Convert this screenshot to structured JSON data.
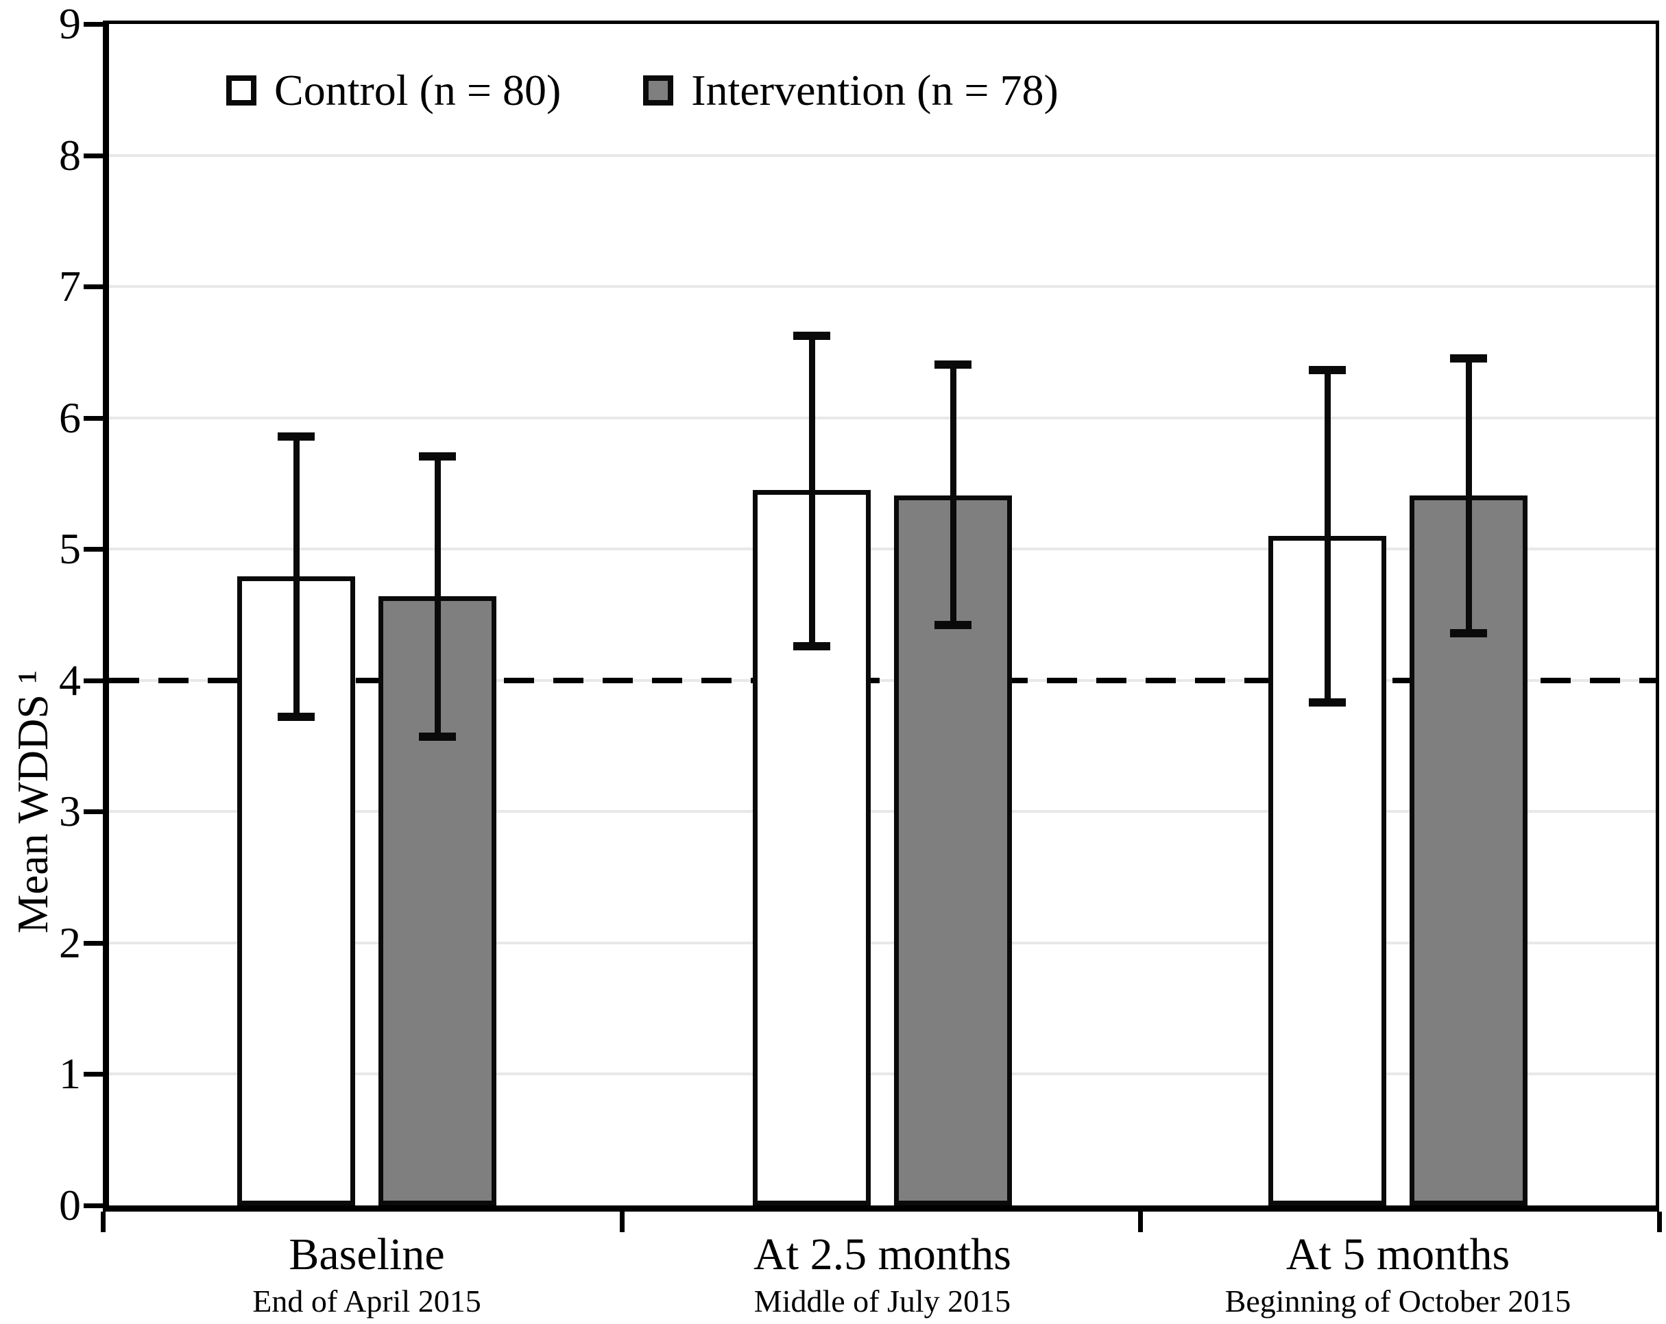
{
  "figure": {
    "ylabel": "Mean WDDS ¹",
    "legend": {
      "control_label": "Control (n = 80)",
      "intervention_label": "Intervention (n = 78)"
    }
  },
  "colors": {
    "control_fill": "#ffffff",
    "intervention_fill": "#7f7f7f",
    "outline": "#0a0a0a",
    "gridline": "#e8e8e8",
    "background": "#ffffff"
  },
  "chart_data": {
    "type": "bar",
    "title": "",
    "xlabel": "",
    "ylabel": "Mean WDDS ¹",
    "ylim": [
      0,
      9
    ],
    "yticks": [
      0,
      1,
      2,
      3,
      4,
      5,
      6,
      7,
      8,
      9
    ],
    "grid": "horizontal light-gray lines at each integer",
    "reference_line": {
      "y": 4,
      "style": "dashed black"
    },
    "legend_position": "top-left inside plot",
    "error_bars": "vertical with caps",
    "categories": [
      {
        "label": "Baseline",
        "sublabel": "End of April 2015"
      },
      {
        "label": "At 2.5 months",
        "sublabel": "Middle of July 2015"
      },
      {
        "label": "At 5 months",
        "sublabel": "Beginning of October 2015"
      }
    ],
    "series": [
      {
        "name": "Control (n = 80)",
        "fill": "#ffffff",
        "values": [
          4.79,
          5.45,
          5.1
        ],
        "error_low": [
          3.72,
          4.26,
          3.83
        ],
        "error_high": [
          5.86,
          6.63,
          6.37
        ]
      },
      {
        "name": "Intervention (n = 78)",
        "fill": "#7f7f7f",
        "values": [
          4.64,
          5.41,
          5.41
        ],
        "error_low": [
          3.57,
          4.42,
          4.36
        ],
        "error_high": [
          5.71,
          6.41,
          6.46
        ]
      }
    ]
  }
}
